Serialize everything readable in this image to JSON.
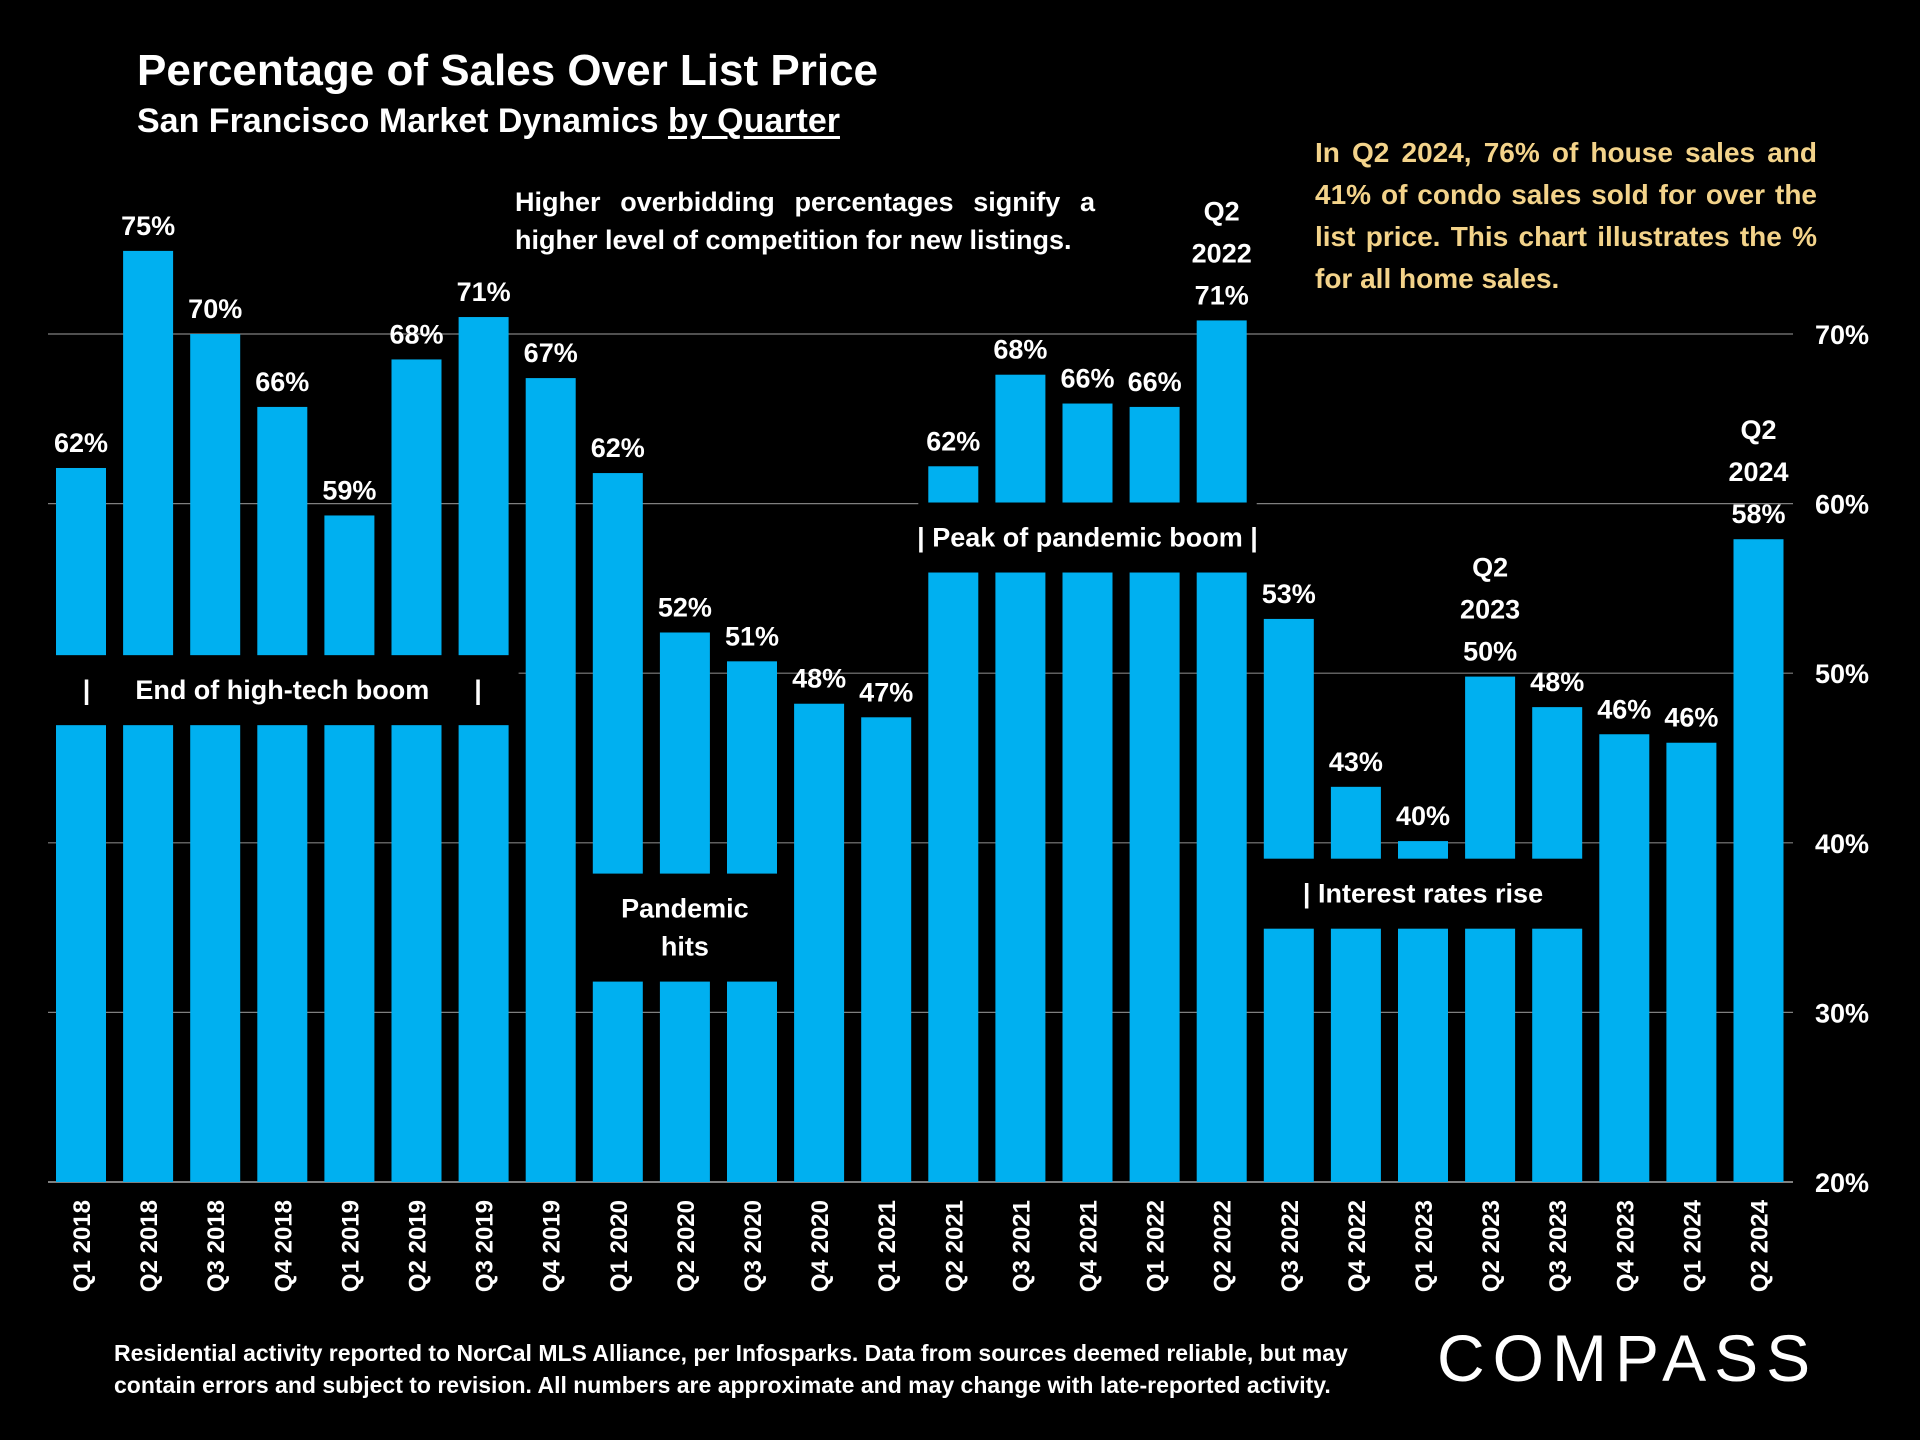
{
  "header": {
    "title": "Percentage of Sales Over List Price",
    "subtitle_prefix": "San Francisco Market Dynamics ",
    "subtitle_underlined": "by Quarter"
  },
  "note": "Higher overbidding percentages signify a higher level of competition for new listings.",
  "callout": "In Q2 2024, 76% of house sales and 41% of condo sales sold for over the list price. This chart illustrates the % for all home sales.",
  "footer": "Residential activity reported to NorCal MLS Alliance, per Infosparks. Data from sources deemed reliable, but may contain errors and subject to revision. All numbers are approximate and may change with late-reported activity.",
  "brand": "COMPASS",
  "colors": {
    "background": "#000000",
    "bar": "#00b0f0",
    "callout_text": "#f3d38a",
    "grid": "#7f7f7f"
  },
  "chart_data": {
    "type": "bar",
    "title": "Percentage of Sales Over List Price",
    "subtitle": "San Francisco Market Dynamics by Quarter",
    "xlabel": "",
    "ylabel": "",
    "ylim": [
      20,
      70
    ],
    "yticks": [
      20,
      30,
      40,
      50,
      60,
      70
    ],
    "ytick_labels": [
      "20%",
      "30%",
      "40%",
      "50%",
      "60%",
      "70%"
    ],
    "y_axis_side": "right",
    "grid": true,
    "categories": [
      "Q1 2018",
      "Q2 2018",
      "Q3 2018",
      "Q4 2018",
      "Q1 2019",
      "Q2 2019",
      "Q3 2019",
      "Q4 2019",
      "Q1 2020",
      "Q2 2020",
      "Q3 2020",
      "Q4 2020",
      "Q1 2021",
      "Q2 2021",
      "Q3 2021",
      "Q4 2021",
      "Q1 2022",
      "Q2 2022",
      "Q3 2022",
      "Q4 2022",
      "Q1 2023",
      "Q2 2023",
      "Q3 2023",
      "Q4 2023",
      "Q1 2024",
      "Q2 2024"
    ],
    "values": [
      62.1,
      74.9,
      70.0,
      65.7,
      59.3,
      68.5,
      71.0,
      67.4,
      61.8,
      52.4,
      50.7,
      48.2,
      47.4,
      62.2,
      67.6,
      65.9,
      65.7,
      70.8,
      53.2,
      43.3,
      40.1,
      49.8,
      48.0,
      46.4,
      45.9,
      57.9
    ],
    "data_labels": [
      "62%",
      "75%",
      "70%",
      "66%",
      "59%",
      "68%",
      "71%",
      "67%",
      "62%",
      "52%",
      "51%",
      "48%",
      "47%",
      "62%",
      "68%",
      "66%",
      "66%",
      "71%",
      "53%",
      "43%",
      "40%",
      "50%",
      "48%",
      "46%",
      "46%",
      "58%"
    ],
    "period_labels": [
      {
        "index": 17,
        "lines": [
          "Q2",
          "2022"
        ]
      },
      {
        "index": 21,
        "lines": [
          "Q2",
          "2023"
        ]
      },
      {
        "index": 25,
        "lines": [
          "Q2",
          "2024"
        ]
      }
    ],
    "annotations": [
      {
        "name": "end-of-high-tech-boom",
        "lines": [
          "|      End of high-tech boom      |"
        ],
        "from_index": 0,
        "to_index": 6,
        "y": 49
      },
      {
        "name": "pandemic-hits",
        "lines": [
          "Pandemic",
          "hits"
        ],
        "from_index": 8,
        "to_index": 10,
        "y": 35
      },
      {
        "name": "peak-of-pandemic-boom",
        "lines": [
          "| Peak of pandemic boom |"
        ],
        "from_index": 13,
        "to_index": 17,
        "y": 58
      },
      {
        "name": "interest-rates-rise",
        "lines": [
          "| Interest rates rise"
        ],
        "from_index": 18,
        "to_index": 22,
        "y": 37
      }
    ]
  }
}
